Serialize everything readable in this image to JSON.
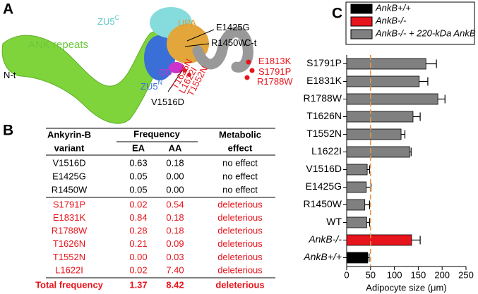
{
  "panel_labels": [
    "A",
    "B",
    "C"
  ],
  "panel_a": {
    "labels": [
      {
        "text": "ZU5",
        "sup": "C"
      },
      {
        "text": "UPA"
      },
      {
        "text": "E1425G"
      },
      {
        "text": "R1450W"
      },
      {
        "text": "C-t"
      },
      {
        "text": "ANK repeats"
      },
      {
        "text": "N-t"
      },
      {
        "text": "DD"
      },
      {
        "text": "ZU5",
        "sup": "N"
      },
      {
        "text": "V1516D"
      },
      {
        "text": "T1626N"
      },
      {
        "text": "L1622I"
      },
      {
        "text": "T1552N"
      },
      {
        "text": "E1813K"
      },
      {
        "text": "S1791P"
      },
      {
        "text": "R1788W"
      }
    ]
  },
  "table": {
    "header": {
      "variant": [
        "Ankyrin-B",
        "variant"
      ],
      "frequency": "Frequency",
      "ea": "EA",
      "aa": "AA",
      "effect": [
        "Metabolic",
        "effect"
      ]
    },
    "rows": [
      [
        "V1516D",
        "0.63",
        "0.18",
        "no effect"
      ],
      [
        "E1425G",
        "0.05",
        "0.00",
        "no effect"
      ],
      [
        "R1450W",
        "0.05",
        "0.00",
        "no effect"
      ],
      [
        "S1791P",
        "0.02",
        "0.54",
        "deleterious"
      ],
      [
        "E1831K",
        "0.84",
        "0.18",
        "deleterious"
      ],
      [
        "R1788W",
        "0.28",
        "0.18",
        "deleterious"
      ],
      [
        "T1626N",
        "0.21",
        "0.09",
        "deleterious"
      ],
      [
        "T1552N",
        "0.00",
        "0.03",
        "deleterious"
      ],
      [
        "L1622I",
        "0.02",
        "7.40",
        "deleterious"
      ]
    ],
    "total": [
      "Total frequency",
      "1.37",
      "8.42",
      "deleterious"
    ]
  },
  "chart_data": {
    "type": "hbar",
    "xlabel": "Adipocyte size (μm)",
    "categories": [
      "S1791P",
      "E1831K",
      "R1788W",
      "T1626N",
      "T1552N",
      "L1622I",
      "V1516D",
      "E1425G",
      "R1450W",
      "WT",
      "AnkB-/-",
      "AnkB+/+"
    ],
    "series": [
      {
        "name": "AnkB+/+",
        "color": "#000000",
        "values": [
          null,
          null,
          null,
          null,
          null,
          null,
          null,
          null,
          null,
          null,
          null,
          44
        ],
        "errors": [
          null,
          null,
          null,
          null,
          null,
          null,
          null,
          null,
          null,
          null,
          null,
          3
        ]
      },
      {
        "name": "AnkB-/-",
        "color": "#e8141c",
        "values": [
          null,
          null,
          null,
          null,
          null,
          null,
          null,
          null,
          null,
          null,
          136,
          null
        ],
        "errors": [
          null,
          null,
          null,
          null,
          null,
          null,
          null,
          null,
          null,
          null,
          18,
          null
        ]
      },
      {
        "name": "AnkB-/- + 220-kDa AnkB",
        "color": "#808080",
        "values": [
          166,
          152,
          191,
          139,
          114,
          132,
          43,
          41,
          38,
          42,
          null,
          null
        ],
        "errors": [
          22,
          18,
          15,
          15,
          8,
          3,
          5,
          10,
          10,
          6,
          null,
          null
        ]
      }
    ],
    "reference_line": 50,
    "xlim": [
      0,
      250
    ],
    "xticks": [
      0,
      50,
      100,
      150,
      200,
      250
    ]
  }
}
